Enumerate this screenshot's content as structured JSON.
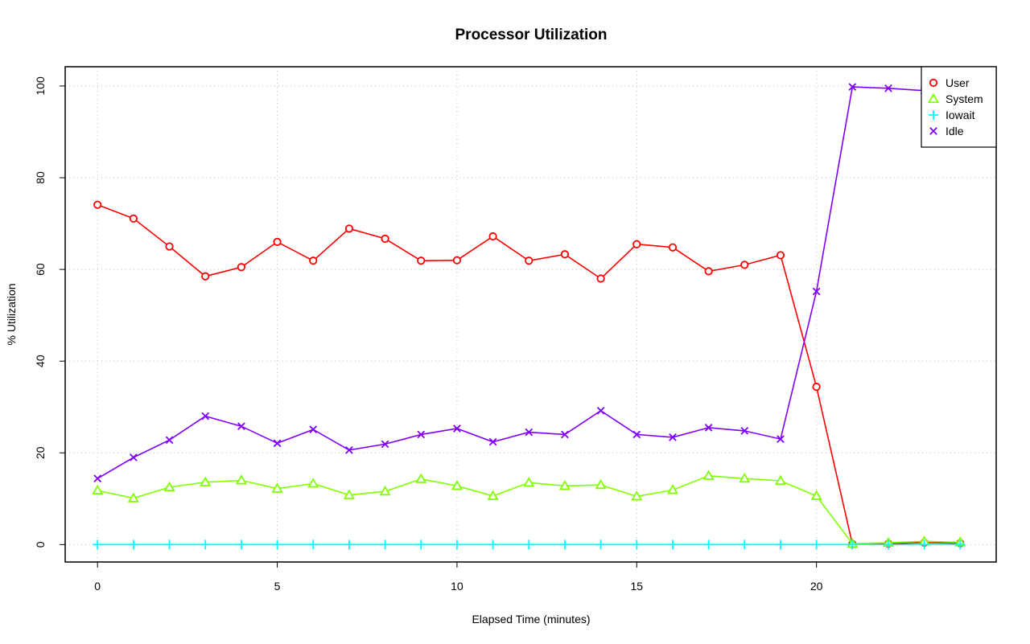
{
  "chart_data": {
    "type": "line",
    "title": "Processor Utilization",
    "xlabel": "Elapsed Time (minutes)",
    "ylabel": "% Utilization",
    "xlim": [
      -0.9,
      25.0
    ],
    "ylim": [
      -3.8,
      104.2
    ],
    "x_ticks": [
      "0",
      "5",
      "10",
      "15",
      "20"
    ],
    "y_ticks": [
      "0",
      "20",
      "40",
      "60",
      "80",
      "100"
    ],
    "grid": true,
    "legend_position": "top-right",
    "x": [
      0,
      1,
      2,
      3,
      4,
      5,
      6,
      7,
      8,
      9,
      10,
      11,
      12,
      13,
      14,
      15,
      16,
      17,
      18,
      19,
      20,
      21,
      22,
      23,
      24
    ],
    "series": [
      {
        "name": "User",
        "color": "#ff0000",
        "marker": "circle",
        "values": [
          74.1,
          71.1,
          65.0,
          58.5,
          60.5,
          66.0,
          61.9,
          68.9,
          66.7,
          61.9,
          62.0,
          67.2,
          61.9,
          63.3,
          58.0,
          65.5,
          64.8,
          59.6,
          61.0,
          63.1,
          34.4,
          0.1,
          0.2,
          0.4,
          0.3
        ]
      },
      {
        "name": "System",
        "color": "#80ff00",
        "marker": "triangle",
        "values": [
          11.8,
          10.1,
          12.5,
          13.6,
          14.0,
          12.2,
          13.3,
          10.8,
          11.6,
          14.3,
          12.8,
          10.6,
          13.5,
          12.8,
          13.0,
          10.5,
          11.9,
          15.0,
          14.4,
          13.9,
          10.6,
          0.2,
          0.4,
          0.7,
          0.5
        ]
      },
      {
        "name": "Iowait",
        "color": "#00ffff",
        "marker": "plus",
        "values": [
          0,
          0,
          0,
          0,
          0,
          0,
          0,
          0,
          0,
          0,
          0,
          0,
          0,
          0,
          0,
          0,
          0,
          0,
          0,
          0,
          0,
          0,
          0,
          0,
          0
        ]
      },
      {
        "name": "Idle",
        "color": "#8000ff",
        "marker": "x",
        "values": [
          14.4,
          19.0,
          22.8,
          28.0,
          25.8,
          22.1,
          25.1,
          20.6,
          21.9,
          24.0,
          25.3,
          22.4,
          24.5,
          24.0,
          29.2,
          24.0,
          23.4,
          25.5,
          24.8,
          23.0,
          55.2,
          99.8,
          99.5,
          99.0,
          99.3
        ]
      }
    ]
  }
}
